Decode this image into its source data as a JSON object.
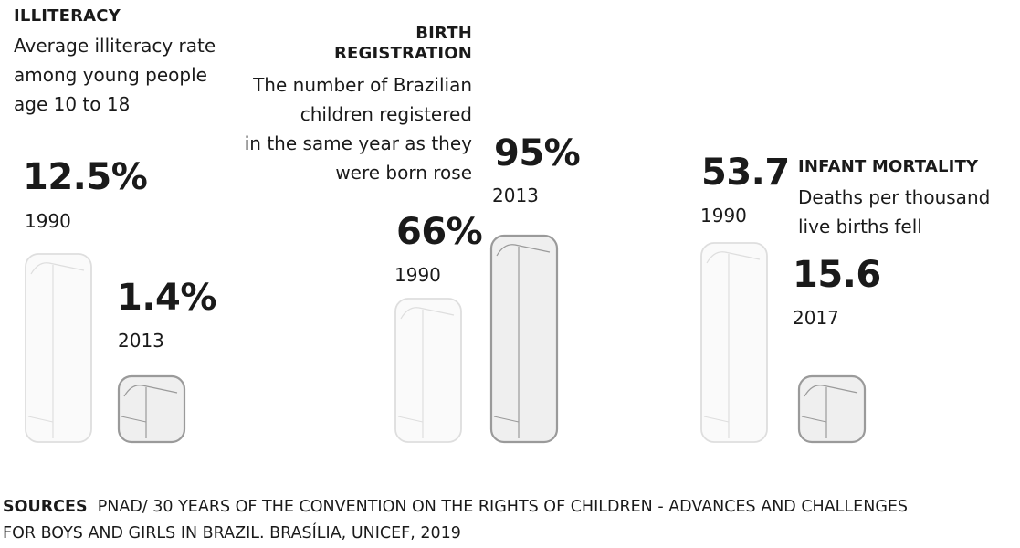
{
  "colors": {
    "text": "#1a1a1a",
    "bar_light_fill": "#fafafa",
    "bar_light_stroke": "#dedede",
    "bar_dark_fill": "#efefef",
    "bar_dark_stroke": "#9a9a9a"
  },
  "chart_data": [
    {
      "type": "bar",
      "id": "illiteracy",
      "heading": "ILLITERACY",
      "description": [
        "Average illiteracy rate",
        "among young people",
        "age 10 to 18"
      ],
      "categories": [
        "1990",
        "2013"
      ],
      "values": [
        12.5,
        1.4
      ],
      "value_labels": [
        "12.5%",
        "1.4%"
      ]
    },
    {
      "type": "bar",
      "id": "birth-registration",
      "heading": [
        "BIRTH",
        "REGISTRATION"
      ],
      "description": [
        "The number of Brazilian",
        "children registered",
        "in the same year as they",
        "were born rose"
      ],
      "categories": [
        "1990",
        "2013"
      ],
      "values": [
        66,
        95
      ],
      "value_labels": [
        "66%",
        "95%"
      ]
    },
    {
      "type": "bar",
      "id": "infant-mortality",
      "heading": "INFANT MORTALITY",
      "description": [
        "Deaths per thousand",
        "live births fell"
      ],
      "categories": [
        "1990",
        "2017"
      ],
      "values": [
        53.7,
        15.6
      ],
      "value_labels": [
        "53.7",
        "15.6"
      ]
    }
  ],
  "sources": {
    "label": "SOURCES",
    "line1": "PNAD/ 30 YEARS OF THE CONVENTION ON THE RIGHTS OF CHILDREN - ADVANCES AND CHALLENGES",
    "line2": "FOR BOYS AND GIRLS IN BRAZIL. BRASÍLIA, UNICEF, 2019"
  }
}
